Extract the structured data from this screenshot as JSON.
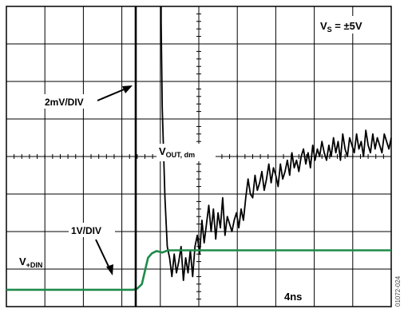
{
  "chart_data": {
    "type": "line",
    "title": "",
    "x_div_label": "4ns",
    "grid": true,
    "divisions": {
      "x": 10,
      "y": 8
    },
    "annotations": {
      "supply_main": "V",
      "supply_sub": "S",
      "supply_value": " = ±5V",
      "out_main": "V",
      "out_sub": "OUT, dm",
      "in_main": "V",
      "in_sub": "+DIN",
      "scale_out": "2mV/DIV",
      "scale_in": "1V/DIV",
      "figure_id": "01072-024"
    },
    "series": [
      {
        "label_ref": "V_OUT,dm",
        "color": "#000000",
        "x_div": [
          0,
          4.02,
          4.02,
          4.05,
          4.12,
          4.18,
          4.24,
          4.3,
          4.36,
          4.42,
          4.48,
          4.54,
          4.6,
          4.66,
          4.72,
          4.78,
          4.84,
          4.9,
          4.96,
          5.02,
          5.08,
          5.14,
          5.2,
          5.26,
          5.32,
          5.38,
          5.44,
          5.5,
          5.56,
          5.62,
          5.68,
          5.74,
          5.8,
          5.86,
          5.92,
          5.98,
          6.04,
          6.1,
          6.16,
          6.22,
          6.28,
          6.34,
          6.4,
          6.46,
          6.52,
          6.58,
          6.64,
          6.7,
          6.76,
          6.82,
          6.88,
          6.94,
          7.0,
          7.06,
          7.12,
          7.18,
          7.24,
          7.3,
          7.36,
          7.42,
          7.48,
          7.54,
          7.6,
          7.66,
          7.72,
          7.78,
          7.84,
          7.9,
          7.96,
          8.02,
          8.08,
          8.14,
          8.2,
          8.26,
          8.32,
          8.38,
          8.44,
          8.5,
          8.56,
          8.62,
          8.68,
          8.74,
          8.8,
          8.86,
          8.92,
          8.98,
          9.04,
          9.1,
          9.16,
          9.22,
          9.28,
          9.34,
          9.4,
          9.46,
          9.52,
          9.58,
          9.64,
          9.7,
          9.76,
          9.82,
          9.88,
          9.94,
          10.0
        ],
        "y_div": [
          null,
          8.0,
          7.6,
          5.3,
          2.9,
          1.6,
          1.3,
          0.8,
          1.4,
          0.9,
          1.2,
          1.6,
          0.7,
          1.3,
          0.9,
          1.5,
          0.8,
          1.6,
          1.9,
          1.4,
          2.3,
          1.7,
          2.2,
          2.7,
          2.0,
          2.6,
          1.8,
          2.5,
          2.1,
          2.9,
          1.9,
          2.4,
          2.2,
          2.0,
          2.3,
          2.5,
          2.1,
          2.6,
          2.3,
          2.9,
          3.4,
          3.0,
          2.9,
          3.5,
          3.1,
          3.3,
          3.6,
          3.1,
          3.4,
          3.8,
          3.3,
          3.7,
          3.5,
          3.2,
          3.8,
          3.4,
          3.6,
          3.9,
          3.5,
          4.1,
          3.7,
          3.9,
          3.6,
          4.0,
          4.2,
          3.8,
          4.1,
          3.7,
          4.3,
          3.9,
          4.2,
          4.0,
          4.4,
          4.1,
          3.9,
          4.3,
          4.0,
          4.5,
          4.1,
          4.4,
          3.9,
          4.6,
          4.2,
          4.0,
          4.5,
          4.3,
          4.1,
          4.6,
          4.2,
          4.4,
          4.0,
          4.7,
          4.3,
          4.1,
          4.6,
          4.2,
          4.5,
          4.3,
          4.1,
          4.6,
          4.4,
          4.2,
          4.5
        ]
      },
      {
        "label_ref": "V_+DIN",
        "color": "#1d8a4a",
        "x_div": [
          0,
          3.3,
          3.4,
          3.52,
          3.6,
          3.68,
          3.78,
          3.9,
          4.05,
          4.2,
          4.4,
          10.0
        ],
        "y_div": [
          0.45,
          0.45,
          0.48,
          0.6,
          0.95,
          1.3,
          1.42,
          1.48,
          1.44,
          1.5,
          1.5,
          1.5
        ]
      }
    ]
  }
}
